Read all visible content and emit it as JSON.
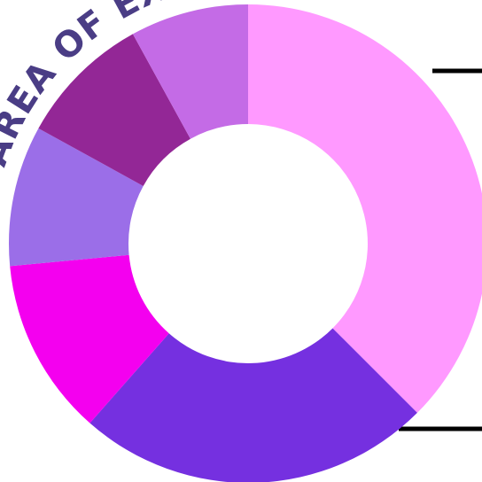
{
  "chart_data": {
    "type": "pie",
    "title": "AREA OF EXPE",
    "variant": "donut",
    "slices": [
      {
        "value": 37.5,
        "color": "#ff99ff"
      },
      {
        "value": 24.0,
        "color": "#7530e0"
      },
      {
        "value": 12.0,
        "color": "#f400ef"
      },
      {
        "value": 9.5,
        "color": "#9b6ee8"
      },
      {
        "value": 9.0,
        "color": "#932796"
      },
      {
        "value": 8.0,
        "color": "#c46be6"
      }
    ]
  },
  "colors": {
    "background": "#ffffff",
    "title": "#4a3d85",
    "rule_lines": "#000000"
  }
}
